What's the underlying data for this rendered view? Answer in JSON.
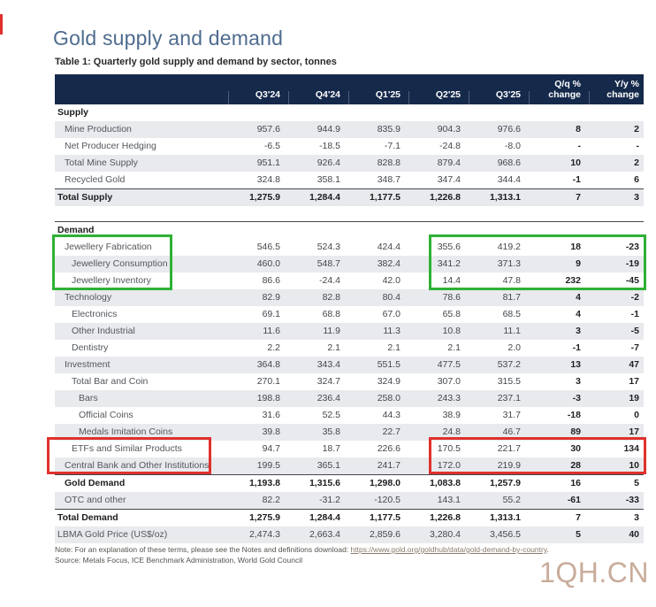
{
  "header": {
    "title": "Gold supply and demand",
    "subtitle": "Table 1: Quarterly gold supply and demand by sector, tonnes"
  },
  "table": {
    "columns": [
      "Q3'24",
      "Q4'24",
      "Q1'25",
      "Q2'25",
      "Q3'25",
      "Q/q %\nchange",
      "Y/y %\nchange"
    ],
    "rows": [
      {
        "label": "Supply",
        "indent": 0,
        "section": true,
        "shaded": false,
        "values": [
          "",
          "",
          "",
          "",
          "",
          "",
          ""
        ]
      },
      {
        "label": "Mine Production",
        "indent": 1,
        "shaded": true,
        "values": [
          "957.6",
          "944.9",
          "835.9",
          "904.3",
          "976.6",
          "8",
          "2"
        ]
      },
      {
        "label": "Net Producer Hedging",
        "indent": 1,
        "shaded": false,
        "values": [
          "-6.5",
          "-18.5",
          "-7.1",
          "-24.8",
          "-8.0",
          "-",
          "-"
        ]
      },
      {
        "label": "Total Mine Supply",
        "indent": 1,
        "shaded": true,
        "values": [
          "951.1",
          "926.4",
          "828.8",
          "879.4",
          "968.6",
          "10",
          "2"
        ]
      },
      {
        "label": "Recycled Gold",
        "indent": 1,
        "shaded": false,
        "values": [
          "324.8",
          "358.1",
          "348.7",
          "347.4",
          "344.4",
          "-1",
          "6"
        ]
      },
      {
        "label": "Total Supply",
        "indent": 0,
        "bold": true,
        "border_top": true,
        "shaded": true,
        "values": [
          "1,275.9",
          "1,284.4",
          "1,177.5",
          "1,226.8",
          "1,313.1",
          "7",
          "3"
        ]
      },
      {
        "type": "gap",
        "label": "",
        "values": []
      },
      {
        "label": "Demand",
        "indent": 0,
        "section": true,
        "border_top": true,
        "shaded": false,
        "values": [
          "",
          "",
          "",
          "",
          "",
          "",
          ""
        ]
      },
      {
        "label": "Jewellery Fabrication",
        "indent": 1,
        "shaded": false,
        "values": [
          "546.5",
          "524.3",
          "424.4",
          "355.6",
          "419.2",
          "18",
          "-23"
        ]
      },
      {
        "label": "Jewellery Consumption",
        "indent": 2,
        "shaded": true,
        "values": [
          "460.0",
          "548.7",
          "382.4",
          "341.2",
          "371.3",
          "9",
          "-19"
        ]
      },
      {
        "label": "Jewellery Inventory",
        "indent": 2,
        "shaded": false,
        "values": [
          "86.6",
          "-24.4",
          "42.0",
          "14.4",
          "47.8",
          "232",
          "-45"
        ]
      },
      {
        "label": "Technology",
        "indent": 1,
        "shaded": true,
        "values": [
          "82.9",
          "82.8",
          "80.4",
          "78.6",
          "81.7",
          "4",
          "-2"
        ]
      },
      {
        "label": "Electronics",
        "indent": 2,
        "shaded": false,
        "values": [
          "69.1",
          "68.8",
          "67.0",
          "65.8",
          "68.5",
          "4",
          "-1"
        ]
      },
      {
        "label": "Other Industrial",
        "indent": 2,
        "shaded": true,
        "values": [
          "11.6",
          "11.9",
          "11.3",
          "10.8",
          "11.1",
          "3",
          "-5"
        ]
      },
      {
        "label": "Dentistry",
        "indent": 2,
        "shaded": false,
        "values": [
          "2.2",
          "2.1",
          "2.1",
          "2.1",
          "2.0",
          "-1",
          "-7"
        ]
      },
      {
        "label": "Investment",
        "indent": 1,
        "shaded": true,
        "values": [
          "364.8",
          "343.4",
          "551.5",
          "477.5",
          "537.2",
          "13",
          "47"
        ]
      },
      {
        "label": "Total Bar and Coin",
        "indent": 2,
        "shaded": false,
        "values": [
          "270.1",
          "324.7",
          "324.9",
          "307.0",
          "315.5",
          "3",
          "17"
        ]
      },
      {
        "label": "Bars",
        "indent": 3,
        "shaded": true,
        "values": [
          "198.8",
          "236.4",
          "258.0",
          "243.3",
          "237.1",
          "-3",
          "19"
        ]
      },
      {
        "label": "Official Coins",
        "indent": 3,
        "shaded": false,
        "values": [
          "31.6",
          "52.5",
          "44.3",
          "38.9",
          "31.7",
          "-18",
          "0"
        ]
      },
      {
        "label": "Medals Imitation Coins",
        "indent": 3,
        "shaded": true,
        "values": [
          "39.8",
          "35.8",
          "22.7",
          "24.8",
          "46.7",
          "89",
          "17"
        ]
      },
      {
        "label": "ETFs and Similar Products",
        "indent": 2,
        "shaded": false,
        "values": [
          "94.7",
          "18.7",
          "226.6",
          "170.5",
          "221.7",
          "30",
          "134"
        ]
      },
      {
        "label": "Central Bank and Other Institutions",
        "indent": 1,
        "shaded": true,
        "values": [
          "199.5",
          "365.1",
          "241.7",
          "172.0",
          "219.9",
          "28",
          "10"
        ]
      },
      {
        "label": "Gold Demand",
        "indent": 1,
        "bold": true,
        "border_top": true,
        "shaded": false,
        "values": [
          "1,193.8",
          "1,315.6",
          "1,298.0",
          "1,083.8",
          "1,257.9",
          "16",
          "5"
        ]
      },
      {
        "label": "OTC and other",
        "indent": 1,
        "shaded": true,
        "values": [
          "82.2",
          "-31.2",
          "-120.5",
          "143.1",
          "55.2",
          "-61",
          "-33"
        ]
      },
      {
        "label": "Total Demand",
        "indent": 0,
        "bold": true,
        "border_top": true,
        "shaded": false,
        "values": [
          "1,275.9",
          "1,284.4",
          "1,177.5",
          "1,226.8",
          "1,313.1",
          "7",
          "3"
        ]
      },
      {
        "label": "LBMA Gold Price (US$/oz)",
        "indent": 0,
        "shaded": true,
        "values": [
          "2,474.3",
          "2,663.4",
          "2,859.6",
          "3,280.4",
          "3,456.5",
          "5",
          "40"
        ]
      }
    ]
  },
  "note": {
    "prefix": "Note: For an explanation of these terms, please see the Notes and definitions download: ",
    "link_text": "https://www.gold.org/goldhub/data/gold-demand-by-country",
    "suffix": ".",
    "source": "Source: Metals Focus, ICE Benchmark Administration, World Gold Council"
  },
  "watermark": {
    "text": "1QH.CN",
    "color": "#C9AC9B"
  },
  "annotations": {
    "boxes": [
      {
        "id": "box-gl",
        "color": "#2EB135"
      },
      {
        "id": "box-gv",
        "color": "#2EB135"
      },
      {
        "id": "box-rl",
        "color": "#E0312D"
      },
      {
        "id": "box-rv",
        "color": "#E0312D"
      }
    ],
    "edge_mark_color": "#E0312D"
  },
  "colors": {
    "header_bg": "#15294B",
    "row_stripe": "#E8EAED",
    "title": "#4E6C8E",
    "highlight_green": "#2EB135",
    "highlight_red": "#E0312D"
  }
}
